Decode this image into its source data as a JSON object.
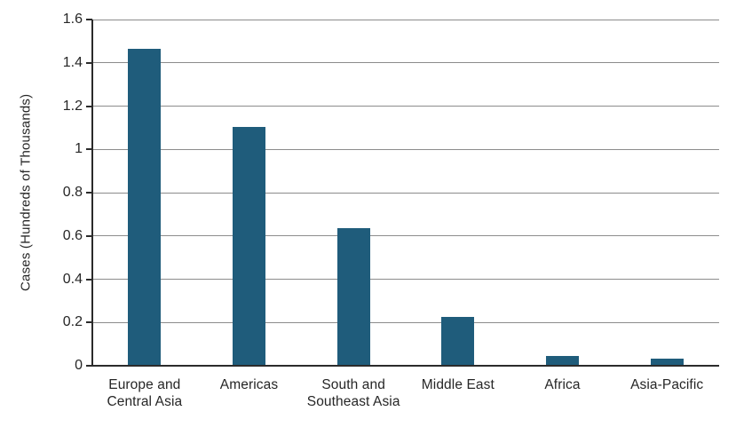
{
  "chart_data": {
    "type": "bar",
    "title": "",
    "xlabel": "",
    "ylabel": "Cases (Hundreds of Thousands)",
    "categories": [
      "Europe and\nCentral Asia",
      "Americas",
      "South and\nSoutheast Asia",
      "Middle East",
      "Africa",
      "Asia-Pacific"
    ],
    "values": [
      1.46,
      1.1,
      0.63,
      0.22,
      0.04,
      0.03
    ],
    "ylim": [
      0,
      1.6
    ],
    "y_ticks": [
      "0",
      "0.2",
      "0.4",
      "0.6",
      "0.8",
      "1",
      "1.2",
      "1.4",
      "1.6"
    ],
    "grid": "horizontal",
    "legend": "none",
    "colors": {
      "bar": "#1F5C7B",
      "gridline": "#8C8C8C",
      "axis": "#2B2B2B",
      "text": "#262626"
    }
  }
}
